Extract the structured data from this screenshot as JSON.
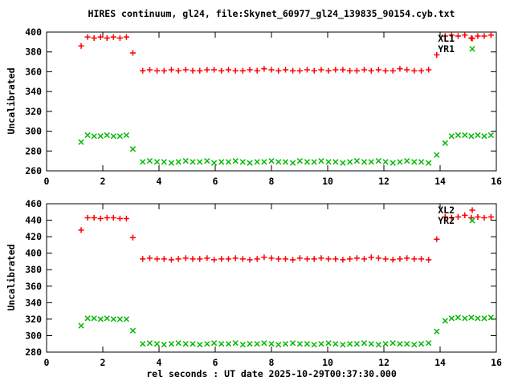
{
  "title": "HIRES continuum, gl24, file:Skynet_60977_gl24_139835_90154.cyb.txt",
  "xlabel": "rel seconds : UT date 2025-10-29T00:37:30.000",
  "colors": {
    "series_red": "#ff0000",
    "series_green": "#00b800",
    "axis": "#000000",
    "background": "#ffffff"
  },
  "chart_data": [
    {
      "type": "scatter",
      "panel": "top",
      "ylabel": "Uncalibrated",
      "xlim": [
        0,
        16
      ],
      "ylim": [
        260,
        400
      ],
      "xticks": [
        0,
        2,
        4,
        6,
        8,
        10,
        12,
        14,
        16
      ],
      "yticks": [
        260,
        280,
        300,
        320,
        340,
        360,
        380,
        400
      ],
      "grid": false,
      "legend_position": "top-right-inside",
      "series": [
        {
          "name": "XL1",
          "marker": "plus",
          "color": "#ff0000",
          "points": [
            [
              1.23,
              386
            ],
            [
              1.46,
              395
            ],
            [
              1.69,
              394
            ],
            [
              1.92,
              395
            ],
            [
              2.15,
              394
            ],
            [
              2.38,
              395
            ],
            [
              2.61,
              394
            ],
            [
              2.84,
              395
            ],
            [
              3.07,
              379
            ],
            [
              3.42,
              361
            ],
            [
              3.67,
              362
            ],
            [
              3.93,
              361
            ],
            [
              4.18,
              361
            ],
            [
              4.44,
              362
            ],
            [
              4.69,
              361
            ],
            [
              4.95,
              362
            ],
            [
              5.2,
              361
            ],
            [
              5.45,
              361
            ],
            [
              5.71,
              362
            ],
            [
              5.96,
              362
            ],
            [
              6.22,
              361
            ],
            [
              6.47,
              362
            ],
            [
              6.72,
              361
            ],
            [
              6.98,
              361
            ],
            [
              7.23,
              362
            ],
            [
              7.49,
              361
            ],
            [
              7.74,
              363
            ],
            [
              8.0,
              362
            ],
            [
              8.25,
              361
            ],
            [
              8.5,
              362
            ],
            [
              8.76,
              361
            ],
            [
              9.01,
              361
            ],
            [
              9.27,
              362
            ],
            [
              9.52,
              361
            ],
            [
              9.77,
              362
            ],
            [
              10.03,
              361
            ],
            [
              10.28,
              362
            ],
            [
              10.54,
              362
            ],
            [
              10.79,
              361
            ],
            [
              11.04,
              361
            ],
            [
              11.3,
              362
            ],
            [
              11.55,
              361
            ],
            [
              11.81,
              362
            ],
            [
              12.06,
              361
            ],
            [
              12.32,
              361
            ],
            [
              12.57,
              363
            ],
            [
              12.82,
              362
            ],
            [
              13.08,
              361
            ],
            [
              13.33,
              361
            ],
            [
              13.59,
              362
            ],
            [
              13.88,
              377
            ],
            [
              14.18,
              396
            ],
            [
              14.41,
              397
            ],
            [
              14.64,
              396
            ],
            [
              14.88,
              397
            ],
            [
              15.11,
              394
            ],
            [
              15.34,
              396
            ],
            [
              15.57,
              396
            ],
            [
              15.81,
              397
            ]
          ]
        },
        {
          "name": "YR1",
          "marker": "cross",
          "color": "#00b800",
          "points": [
            [
              1.23,
              289
            ],
            [
              1.46,
              296
            ],
            [
              1.69,
              295
            ],
            [
              1.92,
              295
            ],
            [
              2.15,
              296
            ],
            [
              2.38,
              295
            ],
            [
              2.61,
              295
            ],
            [
              2.84,
              296
            ],
            [
              3.07,
              282
            ],
            [
              3.42,
              269
            ],
            [
              3.67,
              270
            ],
            [
              3.93,
              269
            ],
            [
              4.18,
              269
            ],
            [
              4.44,
              268
            ],
            [
              4.69,
              269
            ],
            [
              4.95,
              270
            ],
            [
              5.2,
              269
            ],
            [
              5.45,
              269
            ],
            [
              5.71,
              270
            ],
            [
              5.96,
              268
            ],
            [
              6.22,
              269
            ],
            [
              6.47,
              269
            ],
            [
              6.72,
              270
            ],
            [
              6.98,
              269
            ],
            [
              7.23,
              268
            ],
            [
              7.49,
              269
            ],
            [
              7.74,
              269
            ],
            [
              8.0,
              270
            ],
            [
              8.25,
              269
            ],
            [
              8.5,
              269
            ],
            [
              8.76,
              268
            ],
            [
              9.01,
              270
            ],
            [
              9.27,
              269
            ],
            [
              9.52,
              269
            ],
            [
              9.77,
              270
            ],
            [
              10.03,
              269
            ],
            [
              10.28,
              269
            ],
            [
              10.54,
              268
            ],
            [
              10.79,
              269
            ],
            [
              11.04,
              270
            ],
            [
              11.3,
              269
            ],
            [
              11.55,
              269
            ],
            [
              11.81,
              270
            ],
            [
              12.06,
              269
            ],
            [
              12.32,
              268
            ],
            [
              12.57,
              269
            ],
            [
              12.82,
              270
            ],
            [
              13.08,
              269
            ],
            [
              13.33,
              269
            ],
            [
              13.59,
              268
            ],
            [
              13.88,
              276
            ],
            [
              14.18,
              288
            ],
            [
              14.41,
              295
            ],
            [
              14.64,
              296
            ],
            [
              14.88,
              296
            ],
            [
              15.11,
              295
            ],
            [
              15.34,
              296
            ],
            [
              15.57,
              295
            ],
            [
              15.81,
              296
            ]
          ]
        }
      ]
    },
    {
      "type": "scatter",
      "panel": "bottom",
      "ylabel": "Uncalibrated",
      "xlim": [
        0,
        16
      ],
      "ylim": [
        280,
        460
      ],
      "xticks": [
        0,
        2,
        4,
        6,
        8,
        10,
        12,
        14,
        16
      ],
      "yticks": [
        280,
        300,
        320,
        340,
        360,
        380,
        400,
        420,
        440,
        460
      ],
      "grid": false,
      "legend_position": "top-right-inside",
      "series": [
        {
          "name": "XL2",
          "marker": "plus",
          "color": "#ff0000",
          "points": [
            [
              1.23,
              428
            ],
            [
              1.46,
              443
            ],
            [
              1.69,
              443
            ],
            [
              1.92,
              442
            ],
            [
              2.15,
              443
            ],
            [
              2.38,
              443
            ],
            [
              2.61,
              442
            ],
            [
              2.84,
              442
            ],
            [
              3.07,
              419
            ],
            [
              3.42,
              393
            ],
            [
              3.67,
              394
            ],
            [
              3.93,
              393
            ],
            [
              4.18,
              393
            ],
            [
              4.44,
              392
            ],
            [
              4.69,
              393
            ],
            [
              4.95,
              394
            ],
            [
              5.2,
              393
            ],
            [
              5.45,
              393
            ],
            [
              5.71,
              394
            ],
            [
              5.96,
              392
            ],
            [
              6.22,
              393
            ],
            [
              6.47,
              393
            ],
            [
              6.72,
              394
            ],
            [
              6.98,
              393
            ],
            [
              7.23,
              392
            ],
            [
              7.49,
              393
            ],
            [
              7.74,
              395
            ],
            [
              8.0,
              394
            ],
            [
              8.25,
              393
            ],
            [
              8.5,
              393
            ],
            [
              8.76,
              392
            ],
            [
              9.01,
              394
            ],
            [
              9.27,
              393
            ],
            [
              9.52,
              393
            ],
            [
              9.77,
              394
            ],
            [
              10.03,
              393
            ],
            [
              10.28,
              393
            ],
            [
              10.54,
              392
            ],
            [
              10.79,
              393
            ],
            [
              11.04,
              394
            ],
            [
              11.3,
              393
            ],
            [
              11.55,
              395
            ],
            [
              11.81,
              394
            ],
            [
              12.06,
              393
            ],
            [
              12.32,
              392
            ],
            [
              12.57,
              393
            ],
            [
              12.82,
              394
            ],
            [
              13.08,
              393
            ],
            [
              13.33,
              393
            ],
            [
              13.59,
              392
            ],
            [
              13.88,
              417
            ],
            [
              14.18,
              444
            ],
            [
              14.41,
              443
            ],
            [
              14.64,
              444
            ],
            [
              14.88,
              446
            ],
            [
              15.11,
              443
            ],
            [
              15.34,
              444
            ],
            [
              15.57,
              443
            ],
            [
              15.81,
              444
            ]
          ]
        },
        {
          "name": "YR2",
          "marker": "cross",
          "color": "#00b800",
          "points": [
            [
              1.23,
              312
            ],
            [
              1.46,
              321
            ],
            [
              1.69,
              321
            ],
            [
              1.92,
              320
            ],
            [
              2.15,
              321
            ],
            [
              2.38,
              320
            ],
            [
              2.61,
              320
            ],
            [
              2.84,
              320
            ],
            [
              3.07,
              306
            ],
            [
              3.42,
              290
            ],
            [
              3.67,
              291
            ],
            [
              3.93,
              290
            ],
            [
              4.18,
              289
            ],
            [
              4.44,
              290
            ],
            [
              4.69,
              291
            ],
            [
              4.95,
              290
            ],
            [
              5.2,
              290
            ],
            [
              5.45,
              289
            ],
            [
              5.71,
              290
            ],
            [
              5.96,
              291
            ],
            [
              6.22,
              290
            ],
            [
              6.47,
              290
            ],
            [
              6.72,
              291
            ],
            [
              6.98,
              289
            ],
            [
              7.23,
              290
            ],
            [
              7.49,
              290
            ],
            [
              7.74,
              291
            ],
            [
              8.0,
              290
            ],
            [
              8.25,
              289
            ],
            [
              8.5,
              290
            ],
            [
              8.76,
              291
            ],
            [
              9.01,
              290
            ],
            [
              9.27,
              290
            ],
            [
              9.52,
              289
            ],
            [
              9.77,
              290
            ],
            [
              10.03,
              291
            ],
            [
              10.28,
              290
            ],
            [
              10.54,
              289
            ],
            [
              10.79,
              290
            ],
            [
              11.04,
              290
            ],
            [
              11.3,
              291
            ],
            [
              11.55,
              290
            ],
            [
              11.81,
              289
            ],
            [
              12.06,
              290
            ],
            [
              12.32,
              291
            ],
            [
              12.57,
              290
            ],
            [
              12.82,
              290
            ],
            [
              13.08,
              289
            ],
            [
              13.33,
              290
            ],
            [
              13.59,
              291
            ],
            [
              13.88,
              305
            ],
            [
              14.18,
              318
            ],
            [
              14.41,
              321
            ],
            [
              14.64,
              322
            ],
            [
              14.88,
              321
            ],
            [
              15.11,
              322
            ],
            [
              15.34,
              321
            ],
            [
              15.57,
              321
            ],
            [
              15.81,
              322
            ]
          ]
        }
      ]
    }
  ]
}
